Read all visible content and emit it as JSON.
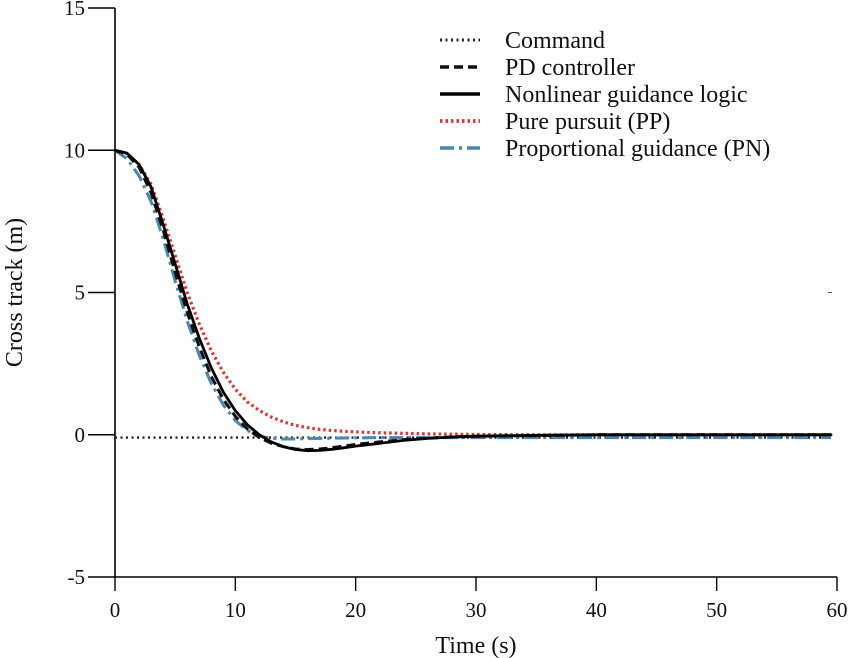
{
  "chart_data": {
    "type": "line",
    "title": "",
    "xlabel": "Time (s)",
    "ylabel": "Cross track (m)",
    "xlim": [
      0,
      60
    ],
    "ylim": [
      -5,
      15
    ],
    "xticks": [
      0,
      10,
      20,
      30,
      40,
      50,
      60
    ],
    "yticks": [
      -5,
      0,
      5,
      10,
      15
    ],
    "xtick_labels": [
      "0",
      "10",
      "20",
      "30",
      "40",
      "50",
      "60"
    ],
    "ytick_labels": [
      "-5",
      "0",
      "5",
      "10",
      "15"
    ],
    "grid": false,
    "legend_position": "top-right",
    "series": [
      {
        "name": "Command",
        "color": "#222222",
        "style": "dotted",
        "x": [
          0,
          5,
          10,
          15,
          20,
          25,
          30,
          35,
          40,
          45,
          50,
          55,
          59.5
        ],
        "y": [
          -0.1,
          -0.1,
          -0.1,
          -0.1,
          -0.1,
          -0.1,
          -0.1,
          -0.1,
          -0.1,
          -0.1,
          -0.1,
          -0.1,
          -0.1
        ]
      },
      {
        "name": "PD controller",
        "color": "#111111",
        "style": "dashed",
        "x": [
          0,
          1,
          2,
          3,
          4,
          5,
          6,
          7,
          8,
          9,
          10,
          11,
          12,
          13,
          14,
          15,
          16,
          17,
          18,
          19,
          20,
          22,
          24,
          26,
          28,
          30,
          35,
          40,
          45,
          50,
          55,
          59.5
        ],
        "y": [
          10,
          9.85,
          9.4,
          8.5,
          7.2,
          5.7,
          4.3,
          3.1,
          2.05,
          1.25,
          0.65,
          0.2,
          -0.1,
          -0.3,
          -0.42,
          -0.5,
          -0.52,
          -0.5,
          -0.46,
          -0.4,
          -0.34,
          -0.25,
          -0.17,
          -0.12,
          -0.08,
          -0.05,
          -0.03,
          0,
          0,
          0,
          0,
          0
        ]
      },
      {
        "name": "Nonlinear guidance logic",
        "color": "#000000",
        "style": "solid",
        "x": [
          0,
          1,
          2,
          3,
          4,
          5,
          6,
          7,
          8,
          9,
          10,
          11,
          12,
          13,
          14,
          15,
          16,
          17,
          18,
          19,
          20,
          22,
          24,
          26,
          28,
          30,
          35,
          40,
          45,
          50,
          55,
          59.5
        ],
        "y": [
          10,
          9.9,
          9.5,
          8.7,
          7.4,
          6.0,
          4.6,
          3.4,
          2.35,
          1.5,
          0.85,
          0.35,
          0,
          -0.25,
          -0.42,
          -0.52,
          -0.56,
          -0.55,
          -0.51,
          -0.46,
          -0.4,
          -0.3,
          -0.2,
          -0.13,
          -0.08,
          -0.05,
          -0.02,
          0,
          0,
          0,
          0,
          0
        ]
      },
      {
        "name": "Pure pursuit (PP)",
        "color": "#e03030",
        "style": "dotted",
        "x": [
          0,
          1,
          2,
          3,
          4,
          5,
          6,
          7,
          8,
          9,
          10,
          11,
          12,
          13,
          14,
          15,
          16,
          17,
          18,
          20,
          22,
          24,
          26,
          28,
          30,
          35,
          40,
          45,
          50,
          55,
          59.5
        ],
        "y": [
          10,
          9.88,
          9.5,
          8.8,
          7.6,
          6.3,
          5.0,
          3.9,
          2.95,
          2.2,
          1.6,
          1.15,
          0.85,
          0.62,
          0.45,
          0.33,
          0.25,
          0.19,
          0.15,
          0.1,
          0.07,
          0.05,
          0.03,
          0.02,
          0.01,
          0,
          0,
          0,
          0,
          0,
          0
        ]
      },
      {
        "name": "Proportional guidance (PN)",
        "color": "#4a86b0",
        "style": "dashdot",
        "x": [
          0,
          1,
          2,
          3,
          4,
          5,
          6,
          7,
          8,
          9,
          10,
          11,
          12,
          13,
          14,
          15,
          16,
          18,
          20,
          22,
          24,
          26,
          28,
          30,
          35,
          40,
          45,
          50,
          55,
          59.5
        ],
        "y": [
          10,
          9.7,
          9.1,
          8.2,
          6.9,
          5.4,
          4.0,
          2.8,
          1.8,
          1.05,
          0.5,
          0.15,
          -0.05,
          -0.12,
          -0.15,
          -0.15,
          -0.14,
          -0.12,
          -0.11,
          -0.1,
          -0.1,
          -0.1,
          -0.1,
          -0.1,
          -0.1,
          -0.1,
          -0.1,
          -0.1,
          -0.1,
          -0.1
        ]
      }
    ]
  }
}
